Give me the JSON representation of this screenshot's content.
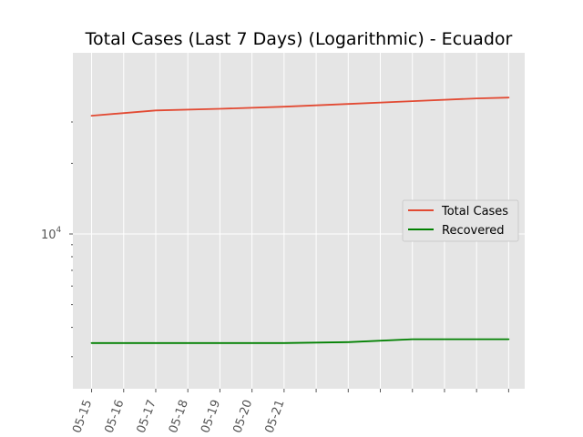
{
  "chart_data": {
    "type": "line",
    "title": "Total Cases (Last 7 Days) (Logarithmic) - Ecuador",
    "xlabel": "",
    "ylabel": "",
    "yscale": "log",
    "grid": true,
    "legend_placement": "center-right",
    "x": [
      "2020-05-15",
      "2020-05-16",
      "2020-05-17",
      "2020-05-18",
      "2020-05-19",
      "2020-05-20",
      "2020-05-21",
      "2020-05-22",
      "2020-05-23",
      "2020-05-24",
      "2020-05-25",
      "2020-05-26",
      "2020-05-27",
      "2020-05-28"
    ],
    "x_tick_labels": [
      "05-15",
      "05-16",
      "05-17",
      "05-18",
      "05-19",
      "05-20",
      "05-21",
      "",
      "",
      "",
      "",
      "",
      "",
      ""
    ],
    "y_tick_labels": [
      {
        "value": 10000,
        "base": "10",
        "exp": "4"
      }
    ],
    "series": [
      {
        "name": "Total Cases",
        "color": "#E24A33",
        "x": [
          "2020-05-15",
          "2020-05-17",
          "2020-05-19",
          "2020-05-21",
          "2020-05-23",
          "2020-05-25",
          "2020-05-27",
          "2020-05-28"
        ],
        "values": [
          31900,
          33600,
          34150,
          34850,
          35800,
          36800,
          37800,
          38100
        ]
      },
      {
        "name": "Recovered",
        "color": "#008000",
        "x": [
          "2020-05-15",
          "2020-05-17",
          "2020-05-19",
          "2020-05-21",
          "2020-05-23",
          "2020-05-25",
          "2020-05-27",
          "2020-05-28"
        ],
        "values": [
          3430,
          3430,
          3430,
          3430,
          3460,
          3560,
          3560,
          3560
        ]
      }
    ]
  }
}
